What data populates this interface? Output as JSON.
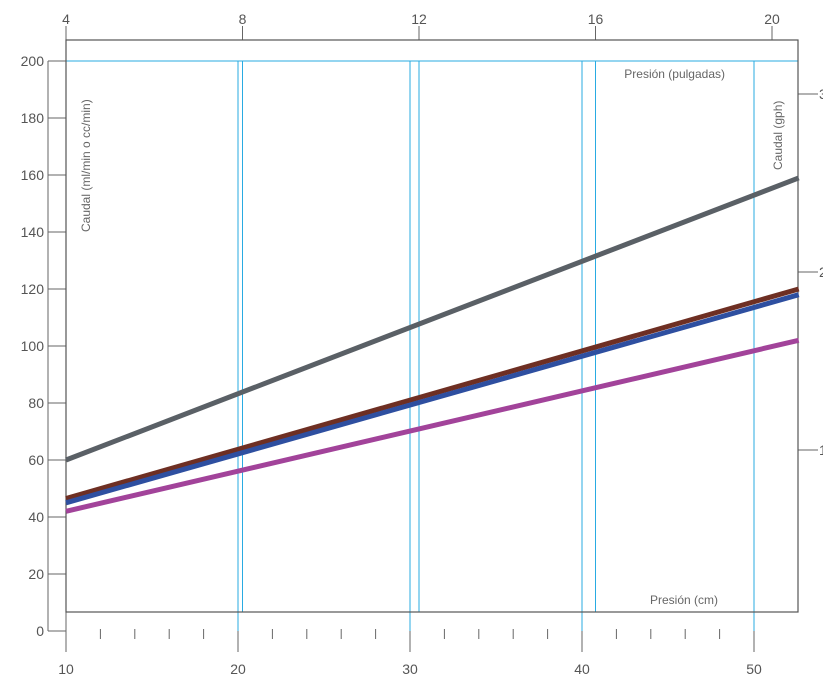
{
  "chart_data": {
    "type": "line",
    "xlabel": "Presión (cm)",
    "x2label": "Presión (pulgadas)",
    "ylabel": "Caudal (ml/min o cc/min)",
    "y2label": "Caudal (gph)",
    "xlim": [
      10,
      52.6
    ],
    "ylim": [
      0,
      200
    ],
    "x_ticks": [
      10,
      20,
      30,
      40,
      50
    ],
    "x_minor_step": 2,
    "y_ticks": [
      0,
      20,
      40,
      60,
      80,
      100,
      120,
      140,
      160,
      180,
      200
    ],
    "x2_ticks": [
      4,
      8,
      12,
      16,
      20
    ],
    "y2_ticks": [
      1,
      2,
      3
    ],
    "gridlines_x": [
      20,
      30,
      40,
      50
    ],
    "series": [
      {
        "color": "#5a6066",
        "x": [
          10,
          52.6
        ],
        "y": [
          60,
          159
        ]
      },
      {
        "color": "#6e2f23",
        "x": [
          10,
          52.6
        ],
        "y": [
          46.5,
          120
        ]
      },
      {
        "color": "#2e4fa0",
        "x": [
          10,
          52.6
        ],
        "y": [
          45,
          118
        ]
      },
      {
        "color": "#a2439a",
        "x": [
          10,
          52.6
        ],
        "y": [
          42,
          102
        ]
      }
    ],
    "colors": {
      "grid": "#29abe2",
      "axis": "#666666",
      "text": "#555555"
    }
  }
}
